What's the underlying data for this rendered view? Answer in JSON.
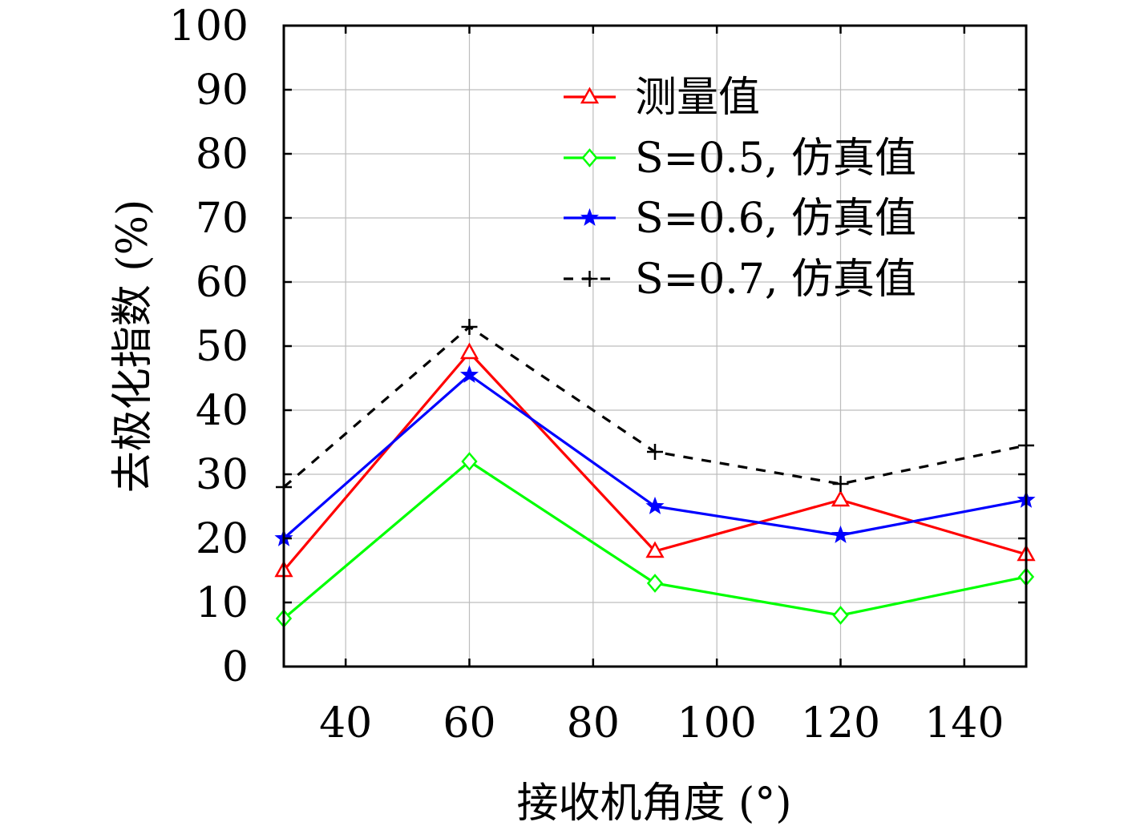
{
  "chart_data": {
    "type": "line",
    "title": "",
    "xlabel": "接收机角度 (°)",
    "ylabel": "去极化指数 (%)",
    "xlim": [
      30,
      150
    ],
    "ylim": [
      0,
      100
    ],
    "xticks": [
      40,
      60,
      80,
      100,
      120,
      140
    ],
    "yticks": [
      0,
      10,
      20,
      30,
      40,
      50,
      60,
      70,
      80,
      90,
      100
    ],
    "grid": true,
    "legend_position": "top-right",
    "series": [
      {
        "name": "测量值",
        "color": "#ff0000",
        "marker": "triangle",
        "line_style": "solid",
        "x": [
          30,
          60,
          90,
          120,
          150
        ],
        "y": [
          15,
          49,
          18,
          26,
          17.5
        ]
      },
      {
        "name": "S=0.5, 仿真值",
        "color": "#00ff00",
        "marker": "diamond",
        "line_style": "solid",
        "x": [
          30,
          60,
          90,
          120,
          150
        ],
        "y": [
          7.5,
          32,
          13,
          8,
          14
        ]
      },
      {
        "name": "S=0.6, 仿真值",
        "color": "#0000ff",
        "marker": "star",
        "line_style": "solid",
        "x": [
          30,
          60,
          90,
          120,
          150
        ],
        "y": [
          20,
          45.5,
          25,
          20.5,
          26
        ]
      },
      {
        "name": "S=0.7, 仿真值",
        "color": "#000000",
        "marker": "plus",
        "line_style": "dashed",
        "x": [
          30,
          60,
          90,
          120,
          150
        ],
        "y": [
          28,
          53,
          33.5,
          28.5,
          34.5
        ]
      }
    ]
  }
}
